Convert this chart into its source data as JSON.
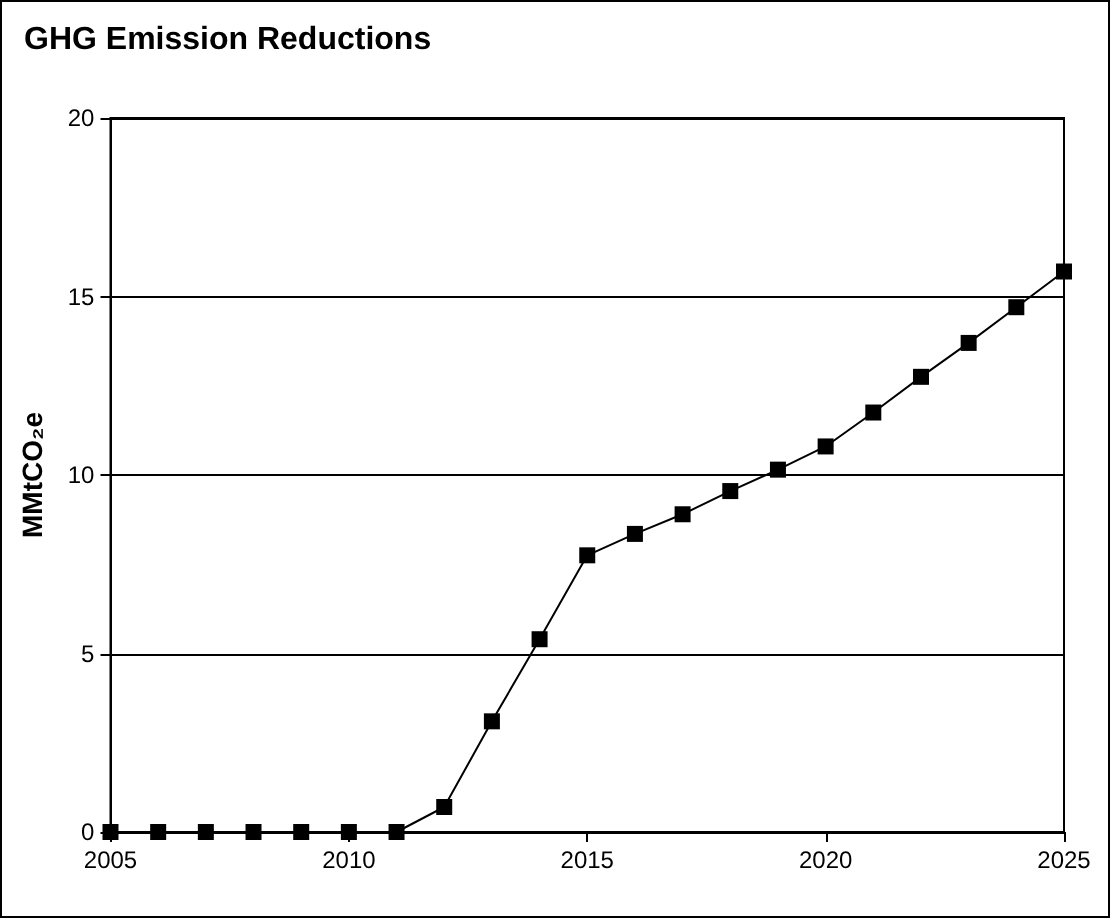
{
  "chart_data": {
    "type": "line",
    "title": "GHG Emission Reductions",
    "ylabel": "MMtCO₂e",
    "x": [
      2005,
      2006,
      2007,
      2008,
      2009,
      2010,
      2011,
      2012,
      2013,
      2014,
      2015,
      2016,
      2017,
      2018,
      2019,
      2020,
      2021,
      2022,
      2023,
      2024,
      2025
    ],
    "series": [
      {
        "color": "#000000",
        "values": [
          0,
          0,
          0,
          0,
          0,
          0,
          0,
          0.7,
          3.1,
          5.4,
          7.75,
          8.35,
          8.9,
          9.55,
          10.15,
          10.8,
          11.75,
          12.75,
          13.7,
          14.7,
          15.7
        ]
      }
    ],
    "xlim": [
      2005,
      2025
    ],
    "xticks": [
      2005,
      2010,
      2015,
      2020,
      2025
    ],
    "ylim": [
      0,
      20
    ],
    "yticks": [
      0,
      5,
      10,
      15,
      20
    ],
    "grid": "y",
    "marker": "square",
    "line_style": "solid"
  }
}
